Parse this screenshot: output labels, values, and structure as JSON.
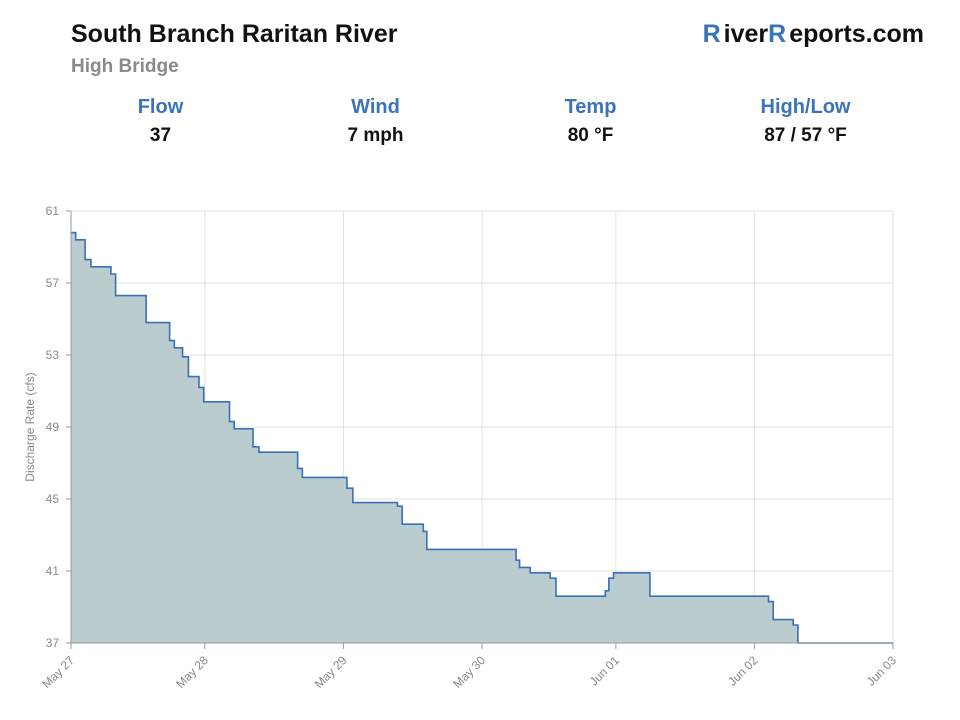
{
  "header": {
    "title": "South Branch Raritan River",
    "subtitle": "High Bridge",
    "logo": "RiverReports.com"
  },
  "stats": [
    {
      "label": "Flow",
      "value": "37"
    },
    {
      "label": "Wind",
      "value": "7 mph"
    },
    {
      "label": "Temp",
      "value": "80 °F"
    },
    {
      "label": "High/Low",
      "value": "87 / 57 °F"
    }
  ],
  "chart_data": {
    "type": "step-area",
    "y_label": "Discharge Rate (cfs)",
    "x": [
      0,
      0.04,
      0.12,
      0.17,
      0.34,
      0.38,
      0.64,
      0.84,
      0.88,
      0.95,
      1.0,
      1.09,
      1.13,
      1.35,
      1.39,
      1.55,
      1.6,
      1.93,
      1.97,
      2.35,
      2.4,
      2.78,
      2.82,
      3.0,
      3.03,
      3.79,
      3.82,
      3.91,
      4.08,
      4.13,
      4.55,
      4.58,
      4.62,
      4.93,
      5.94,
      5.98,
      6.15,
      6.19,
      7
    ],
    "series": [
      {
        "color": "#3a70b5",
        "fill": "#bacccd",
        "values": [
          59.8,
          59.4,
          58.3,
          57.9,
          57.5,
          56.3,
          54.8,
          53.8,
          53.4,
          52.9,
          51.8,
          51.2,
          50.4,
          49.3,
          48.9,
          47.9,
          47.6,
          46.7,
          46.2,
          45.6,
          44.8,
          44.6,
          43.6,
          43.2,
          42.2,
          41.6,
          41.2,
          40.9,
          40.6,
          39.6,
          39.9,
          40.6,
          40.9,
          39.6,
          39.3,
          38.3,
          38.0,
          37.0,
          37.0
        ]
      }
    ],
    "xlim": [
      0,
      7
    ],
    "xticks": [
      {
        "value": 0,
        "label": "May 27"
      },
      {
        "value": 1.14,
        "label": "May 28"
      },
      {
        "value": 2.32,
        "label": "May 29"
      },
      {
        "value": 3.5,
        "label": "May 30"
      },
      {
        "value": 4.64,
        "label": "Jun 01"
      },
      {
        "value": 5.82,
        "label": "Jun 02"
      },
      {
        "value": 7,
        "label": "Jun 03"
      }
    ],
    "ylim": [
      37,
      61
    ],
    "yticks": [
      37,
      41,
      45,
      49,
      53,
      57,
      61
    ],
    "grid": true
  }
}
